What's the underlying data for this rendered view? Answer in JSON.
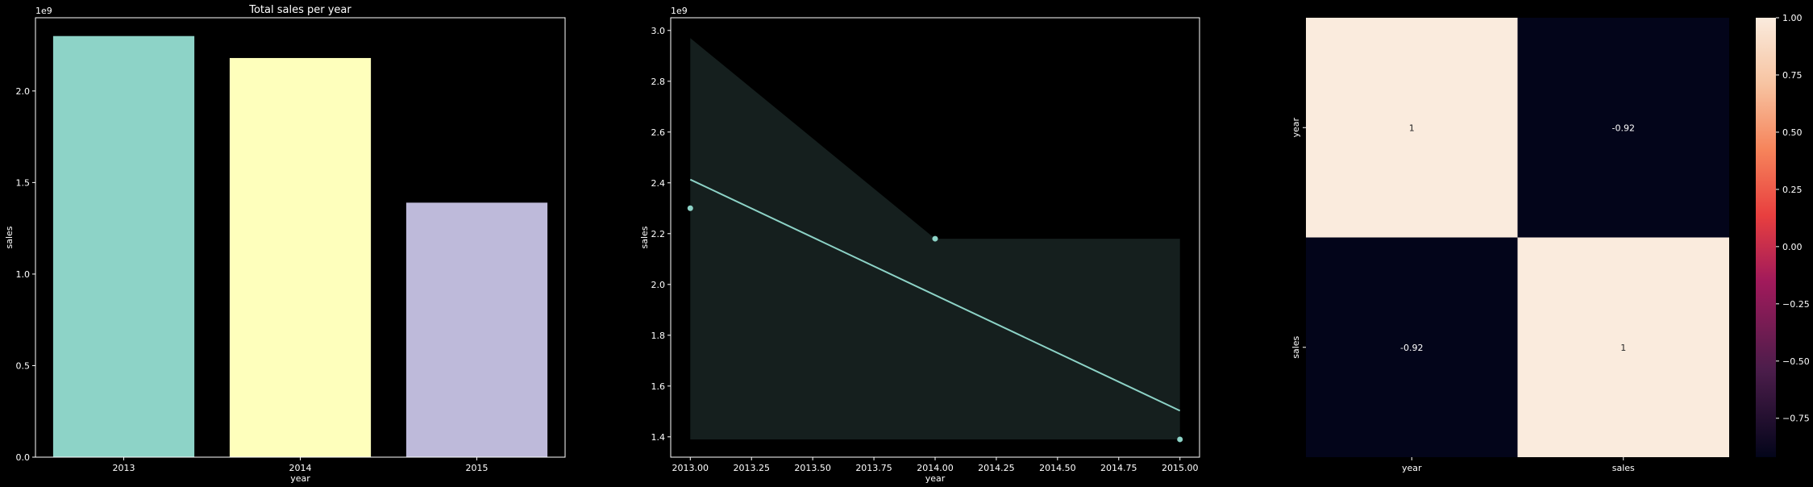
{
  "chart_data": [
    {
      "type": "bar",
      "title": "Total sales per year",
      "xlabel": "year",
      "ylabel": "sales",
      "offset_label": "1e9",
      "categories": [
        "2013",
        "2014",
        "2015"
      ],
      "values": [
        2300000000,
        2180000000,
        1390000000
      ],
      "ylim": [
        0,
        2400000000
      ],
      "yticks": [
        0,
        500000000,
        1000000000,
        1500000000,
        2000000000
      ],
      "ytick_labels": [
        "0.0",
        "0.5",
        "1.0",
        "1.5",
        "2.0"
      ],
      "colors": [
        "#8dd3c7",
        "#feffbc",
        "#bebada"
      ],
      "grid": false
    },
    {
      "type": "scatter",
      "subtype": "regression",
      "xlabel": "year",
      "ylabel": "sales",
      "offset_label": "1e9",
      "points": [
        {
          "x": 2013.0,
          "y": 2300000000
        },
        {
          "x": 2014.0,
          "y": 2180000000
        },
        {
          "x": 2015.0,
          "y": 1390000000
        }
      ],
      "fit_line": [
        {
          "x": 2013.0,
          "y": 2413000000
        },
        {
          "x": 2015.0,
          "y": 1503000000
        }
      ],
      "confidence_band": {
        "upper": [
          {
            "x": 2013.0,
            "y": 2970000000
          },
          {
            "x": 2014.0,
            "y": 2180000000
          },
          {
            "x": 2015.0,
            "y": 2180000000
          }
        ],
        "lower": [
          {
            "x": 2013.0,
            "y": 1390000000
          },
          {
            "x": 2014.0,
            "y": 1390000000
          },
          {
            "x": 2015.0,
            "y": 1390000000
          }
        ]
      },
      "xlim": [
        2012.92,
        2015.08
      ],
      "ylim": [
        1320000000,
        3050000000
      ],
      "xticks": [
        2013.0,
        2013.25,
        2013.5,
        2013.75,
        2014.0,
        2014.25,
        2014.5,
        2014.75,
        2015.0
      ],
      "xtick_labels": [
        "2013.00",
        "2013.25",
        "2013.50",
        "2013.75",
        "2014.00",
        "2014.25",
        "2014.50",
        "2014.75",
        "2015.00"
      ],
      "yticks": [
        1400000000,
        1600000000,
        1800000000,
        2000000000,
        2200000000,
        2400000000,
        2600000000,
        2800000000,
        3000000000
      ],
      "ytick_labels": [
        "1.4",
        "1.6",
        "1.8",
        "2.0",
        "2.2",
        "2.4",
        "2.6",
        "2.8",
        "3.0"
      ],
      "color": "#8dd3c7",
      "grid": false
    },
    {
      "type": "heatmap",
      "row_labels": [
        "year",
        "sales"
      ],
      "col_labels": [
        "year",
        "sales"
      ],
      "values": [
        [
          1,
          -0.92
        ],
        [
          -0.92,
          1
        ]
      ],
      "cell_labels": [
        [
          "1",
          "-0.92"
        ],
        [
          "-0.92",
          "1"
        ]
      ],
      "colormap": "rocket",
      "colorbar": {
        "vmin": -0.92,
        "vmax": 1.0,
        "ticks": [
          -0.75,
          -0.5,
          -0.25,
          0.0,
          0.25,
          0.5,
          0.75,
          1.0
        ],
        "tick_labels": [
          "−0.75",
          "−0.50",
          "−0.25",
          "0.00",
          "0.25",
          "0.50",
          "0.75",
          "1.00"
        ]
      }
    }
  ]
}
